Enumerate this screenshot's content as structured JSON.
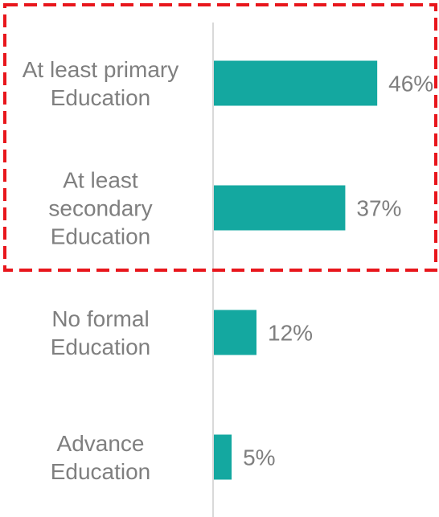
{
  "chart_data": {
    "type": "barh",
    "categories": [
      "At least primary\nEducation",
      "At least\nsecondary\nEducation",
      "No formal\nEducation",
      "Advance\nEducation"
    ],
    "values": [
      46,
      37,
      12,
      5
    ],
    "value_labels": [
      "46%",
      "37%",
      "12%",
      "5%"
    ],
    "color": "#14a8a0",
    "xlim": [
      0,
      60
    ]
  }
}
